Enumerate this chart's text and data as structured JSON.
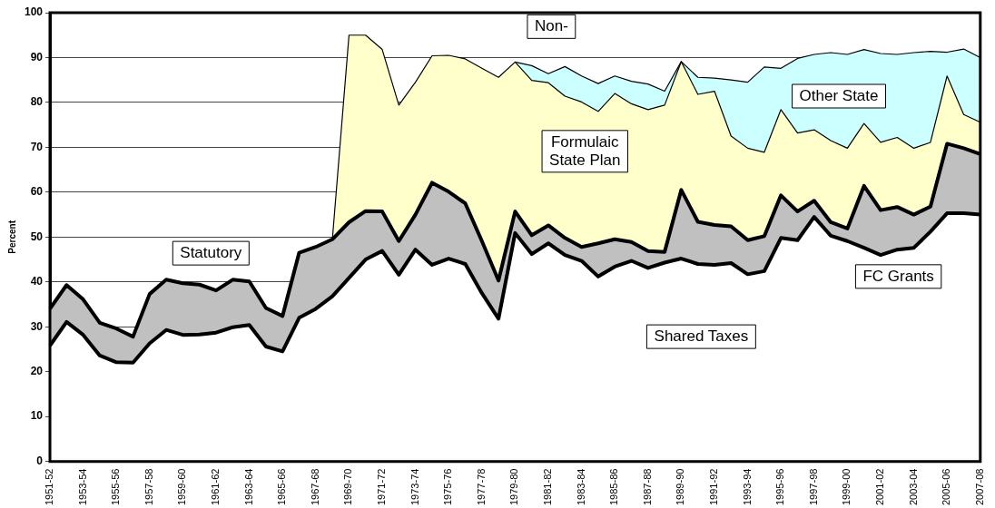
{
  "chart_data": {
    "type": "area",
    "stacked": true,
    "ylabel": "Percent",
    "categories": [
      "1951-52",
      null,
      "1953-54",
      null,
      "1955-56",
      null,
      "1957-58",
      null,
      "1959-60",
      null,
      "1961-62",
      null,
      "1963-64",
      null,
      "1965-66",
      null,
      "1967-68",
      null,
      "1969-70",
      null,
      "1971-72",
      null,
      "1973-74",
      null,
      "1975-76",
      null,
      "1977-78",
      null,
      "1979-80",
      null,
      "1981-82",
      null,
      "1983-84",
      null,
      "1985-86",
      null,
      "1987-88",
      null,
      "1989-90",
      null,
      "1991-92",
      null,
      "1993-94",
      null,
      "1995-96",
      null,
      "1997-98",
      null,
      "1999-00",
      null,
      "2001-02",
      null,
      "2003-04",
      null,
      "2005-06",
      null,
      "2007-08"
    ],
    "series": [
      {
        "color": "#ffffff",
        "values": [
          25.8,
          31.1,
          28.2,
          23.6,
          22.1,
          22.0,
          26.3,
          29.3,
          28.2,
          28.3,
          28.7,
          29.9,
          30.4,
          25.6,
          24.5,
          32.0,
          34.0,
          36.8,
          40.9,
          45.0,
          46.9,
          41.6,
          47.2,
          43.8,
          45.2,
          44.0,
          37.5,
          31.8,
          50.9,
          46.2,
          48.6,
          46.0,
          44.7,
          41.2,
          43.4,
          44.7,
          43.1,
          44.3,
          45.2,
          44.0,
          43.8,
          44.2,
          41.7,
          42.4,
          49.8,
          49.3,
          54.5,
          50.3,
          49.1,
          47.6,
          46.0,
          47.2,
          47.6,
          51.2,
          55.3,
          55.3,
          55.0
        ]
      },
      {
        "color": "#c0c0c0",
        "values": [
          8.2,
          8.2,
          7.9,
          7.3,
          7.5,
          5.8,
          11.0,
          11.2,
          11.5,
          11.1,
          9.4,
          10.6,
          9.7,
          8.6,
          7.9,
          14.5,
          13.8,
          12.7,
          12.4,
          10.8,
          8.8,
          7.5,
          7.8,
          18.3,
          14.9,
          13.5,
          11.6,
          8.5,
          4.8,
          4.2,
          4.0,
          3.8,
          3.1,
          7.4,
          6.1,
          4.2,
          3.8,
          2.4,
          15.3,
          9.4,
          8.9,
          8.2,
          7.6,
          7.8,
          9.5,
          6.4,
          3.6,
          3.0,
          2.8,
          13.8,
          10.0,
          9.5,
          7.4,
          5.6,
          15.5,
          14.5,
          13.5
        ]
      },
      {
        "color": "#ffffcc",
        "values": [
          null,
          null,
          null,
          null,
          null,
          null,
          null,
          null,
          null,
          null,
          null,
          null,
          null,
          null,
          null,
          null,
          null,
          0,
          41.7,
          39.2,
          36.1,
          30.3,
          29.5,
          28.3,
          30.4,
          32.2,
          38.5,
          45.3,
          33.3,
          34.5,
          31.8,
          31.6,
          32.3,
          29.4,
          32.5,
          30.8,
          31.5,
          32.7,
          28.6,
          28.4,
          29.8,
          20.1,
          20.5,
          18.7,
          19.1,
          17.5,
          15.8,
          18.2,
          17.9,
          13.9,
          15.1,
          15.5,
          14.8,
          14.3,
          15.1,
          7.5,
          7.1
        ]
      },
      {
        "color": "#ccffff",
        "values": [
          null,
          null,
          null,
          null,
          null,
          null,
          null,
          null,
          null,
          null,
          null,
          null,
          null,
          null,
          null,
          null,
          null,
          null,
          null,
          null,
          null,
          null,
          null,
          null,
          null,
          null,
          null,
          null,
          0,
          3.3,
          2.0,
          6.6,
          5.8,
          6.2,
          3.9,
          5.0,
          5.7,
          3.1,
          0,
          3.8,
          2.9,
          12.5,
          14.7,
          19.0,
          9.2,
          16.6,
          16.8,
          19.6,
          20.9,
          16.5,
          19.8,
          18.5,
          21.3,
          20.3,
          5.3,
          14.6,
          14.4
        ]
      }
    ],
    "ylim": [
      0,
      100
    ],
    "yticks": [
      0,
      10,
      20,
      30,
      40,
      50,
      60,
      70,
      80,
      90,
      100
    ],
    "grid": "y",
    "annotations": [
      "Non-",
      "Statutory",
      "Formulaic\nState Plan",
      "Other State",
      "FC Grants",
      "Shared Taxes"
    ]
  }
}
